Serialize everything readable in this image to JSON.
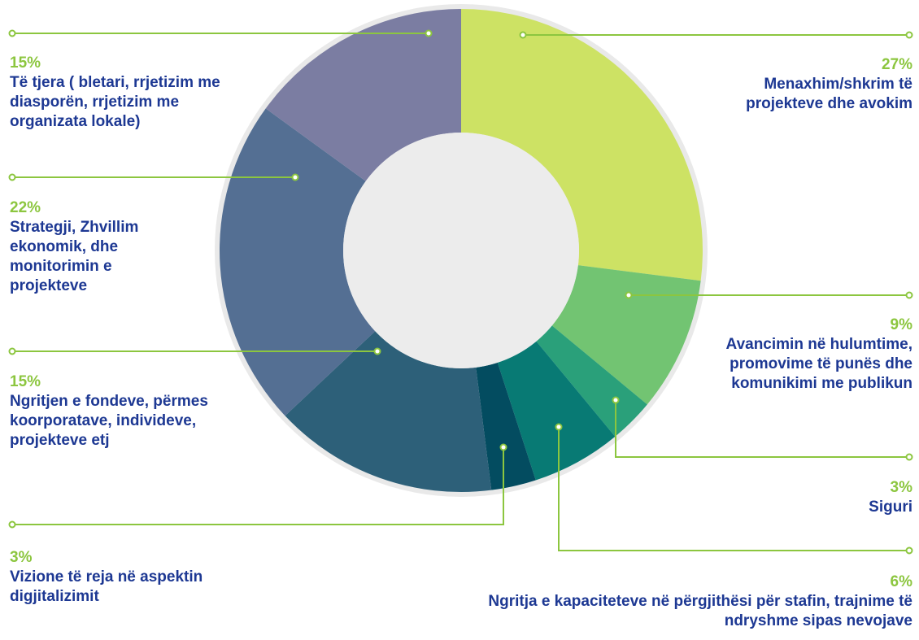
{
  "chart_data": {
    "type": "donut",
    "categories": [
      "Menaxhim/shkrim të projekteve dhe avokim",
      "Avancimin në hulumtime, promovime të punës dhe komunikimi me publikun",
      "Siguri",
      "Ngritja e kapaciteteve në përgjithësi për stafin, trajnime të ndryshme sipas nevojave",
      "Vizione të reja në aspektin digjitalizimit",
      "Ngritjen e fondeve, përmes koorporatave, individeve, projekteve etj",
      "Strategji, Zhvillim ekonomik, dhe monitorimin e projekteve",
      "Të tjera ( bletari, rrjetizim me diasporën, rrjetizim me organizata lokale)"
    ],
    "values": [
      27,
      9,
      3,
      6,
      3,
      15,
      22,
      15
    ],
    "value_labels": [
      "27%",
      "9%",
      "3%",
      "6%",
      "3%",
      "15%",
      "22%",
      "15%"
    ],
    "colors": [
      "#cde264",
      "#72c472",
      "#2aa07a",
      "#087a74",
      "#034c60",
      "#2d6079",
      "#546f93",
      "#7b7da2"
    ]
  }
}
